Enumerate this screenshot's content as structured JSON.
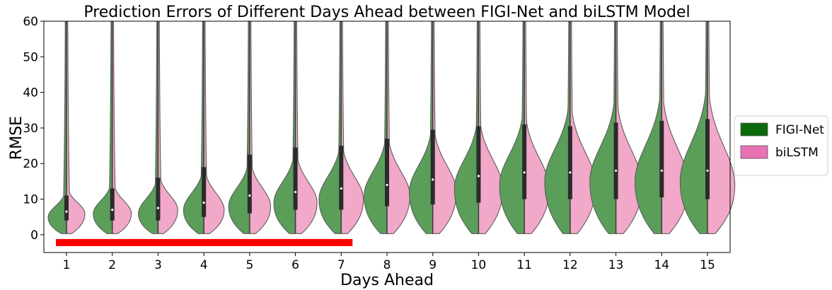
{
  "chart_data": {
    "type": "violin",
    "title": "Prediction Errors of Different Days Ahead between FIGI-Net and biLSTM Model",
    "xlabel": "Days Ahead",
    "ylabel": "RMSE",
    "ylim": [
      -5,
      60
    ],
    "yticks": [
      0,
      10,
      20,
      30,
      40,
      50,
      60
    ],
    "categories": [
      "1",
      "2",
      "3",
      "4",
      "5",
      "6",
      "7",
      "8",
      "9",
      "10",
      "11",
      "12",
      "13",
      "14",
      "15"
    ],
    "grid": false,
    "legend_position": "right",
    "series": [
      {
        "name": "FIGI-Net",
        "color": "#5a9e5a",
        "legend_color": "#0b6b0b",
        "side": "left",
        "peak": [
          5,
          6,
          6,
          7,
          8,
          9,
          10,
          11,
          12,
          13,
          14,
          15,
          15,
          15,
          15
        ]
      },
      {
        "name": "biLSTM",
        "color": "#f2a8c8",
        "legend_color": "#e872b4",
        "side": "right",
        "peak": [
          6,
          6,
          7,
          7,
          8,
          9,
          10,
          11,
          12,
          13,
          13,
          14,
          14,
          14,
          14
        ]
      }
    ],
    "box": {
      "q1": [
        4,
        4,
        4,
        5,
        6,
        7,
        7,
        8,
        8.5,
        9,
        10,
        10,
        10,
        10.5,
        10
      ],
      "median": [
        6.5,
        7,
        7.5,
        9,
        11,
        12,
        13,
        14,
        15.5,
        16.5,
        17.5,
        17.5,
        18,
        18,
        18
      ],
      "q3": [
        11,
        13,
        16,
        19,
        22.5,
        24.5,
        25,
        27,
        29.5,
        30.5,
        31,
        30.5,
        31.5,
        32,
        32.5
      ]
    },
    "annotation": {
      "type": "red-bar",
      "from_day": 1,
      "to_day": 7,
      "y_value": -2.2,
      "color": "#ff0000"
    }
  }
}
